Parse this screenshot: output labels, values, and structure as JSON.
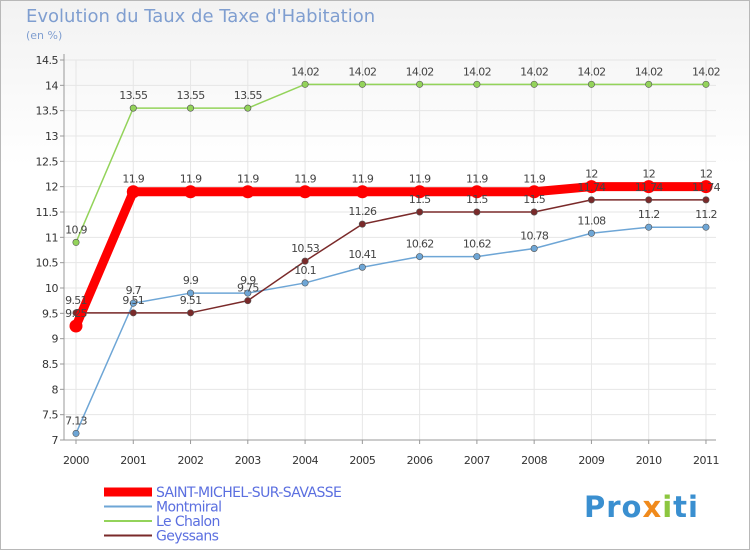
{
  "chart_data": {
    "type": "line",
    "title": "Evolution du Taux de Taxe d'Habitation",
    "subtitle": "(en %)",
    "x": [
      "2000",
      "2001",
      "2002",
      "2003",
      "2004",
      "2005",
      "2006",
      "2007",
      "2008",
      "2009",
      "2010",
      "2011"
    ],
    "ylim": [
      7,
      14.5
    ],
    "yticks": [
      "7",
      "7.5",
      "8",
      "8.5",
      "9",
      "9.5",
      "10",
      "10.5",
      "11",
      "11.5",
      "12",
      "12.5",
      "13",
      "13.5",
      "14",
      "14.5"
    ],
    "grid": true,
    "legend_position": "bottom-left",
    "series": [
      {
        "name": "Le Chalon",
        "color": "#93d35a",
        "values": [
          10.9,
          13.55,
          13.55,
          13.55,
          14.02,
          14.02,
          14.02,
          14.02,
          14.02,
          14.02,
          14.02,
          14.02
        ],
        "labels": [
          "10.9",
          "13.55",
          "13.55",
          "13.55",
          "14.02",
          "14.02",
          "14.02",
          "14.02",
          "14.02",
          "14.02",
          "14.02",
          "14.02"
        ]
      },
      {
        "name": "Montmiral",
        "color": "#6ea6d6",
        "values": [
          7.13,
          9.7,
          9.9,
          9.9,
          10.1,
          10.41,
          10.62,
          10.62,
          10.78,
          11.08,
          11.2,
          11.2
        ],
        "labels": [
          "7.13",
          "9.7",
          "9.9",
          "9.9",
          "10.1",
          "10.41",
          "10.62",
          "10.62",
          "10.78",
          "11.08",
          "11.2",
          "11.2"
        ]
      },
      {
        "name": "Geyssans",
        "color": "#7a2a2a",
        "values": [
          9.51,
          9.51,
          9.51,
          9.75,
          10.53,
          11.26,
          11.5,
          11.5,
          11.5,
          11.74,
          11.74,
          11.74
        ],
        "labels": [
          "9.51",
          "9.51",
          "9.51",
          "9.75",
          "10.53",
          "11.26",
          "11.5",
          "11.5",
          "11.5",
          "11.74",
          "11.74",
          "11.74"
        ]
      },
      {
        "name": "SAINT-MICHEL-SUR-SAVASSE",
        "color": "#ff0000",
        "values": [
          9.25,
          11.9,
          11.9,
          11.9,
          11.9,
          11.9,
          11.9,
          11.9,
          11.9,
          12,
          12,
          12
        ],
        "labels": [
          "9.25",
          "11.9",
          "11.9",
          "11.9",
          "11.9",
          "11.9",
          "11.9",
          "11.9",
          "11.9",
          "12",
          "12",
          "12"
        ]
      }
    ],
    "legend": [
      {
        "name": "SAINT-MICHEL-SUR-SAVASSE",
        "color": "#ff0000",
        "text_color": "#5b6fe0"
      },
      {
        "name": "Montmiral",
        "color": "#6ea6d6",
        "text_color": "#5b6fe0"
      },
      {
        "name": "Le Chalon",
        "color": "#93d35a",
        "text_color": "#5b6fe0"
      },
      {
        "name": "Geyssans",
        "color": "#7a2a2a",
        "text_color": "#5b6fe0"
      }
    ]
  },
  "logo": {
    "p1": "Pro",
    "p2": "x",
    "p3": "i",
    "p4": "ti"
  }
}
